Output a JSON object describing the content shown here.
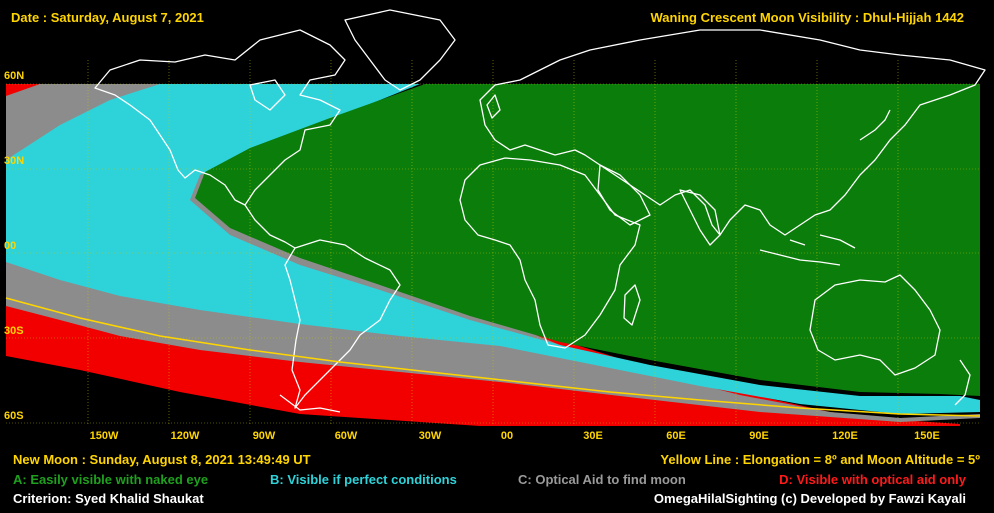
{
  "header": {
    "date": "Date : Saturday, August 7, 2021",
    "title": "Waning Crescent Moon Visibility : Dhul-Hijjah 1442"
  },
  "lat_labels": [
    "60N",
    "30N",
    "00",
    "30S",
    "60S"
  ],
  "lon_labels": [
    "150W",
    "120W",
    "90W",
    "60W",
    "30W",
    "00",
    "30E",
    "60E",
    "90E",
    "120E",
    "150E"
  ],
  "footer": {
    "new_moon": "New Moon : Sunday, August 8, 2021  13:49:49  UT",
    "yellow_line": "Yellow Line : Elongation = 8º  and Moon Altitude = 5º",
    "legend_a": "A: Easily visible with naked eye",
    "legend_b": "B: Visible if perfect conditions",
    "legend_c": "C: Optical Aid to find moon",
    "legend_d": "D: Visible with optical aid only",
    "criterion": "Criterion: Syed Khalid Shaukat",
    "credit": "OmegaHilalSighting  (c)  Developed by Fawzi Kayali"
  },
  "colors": {
    "zone_a": "#0b7d0b",
    "zone_b": "#2ed3da",
    "zone_c": "#8c8c8c",
    "zone_d": "#f20000",
    "background": "#000000",
    "text_primary": "#ffd500",
    "legend_a_text": "#1fa01f",
    "legend_b_text": "#2ed3da",
    "legend_c_text": "#9a9a9a",
    "legend_d_text": "#ff1a1a"
  }
}
